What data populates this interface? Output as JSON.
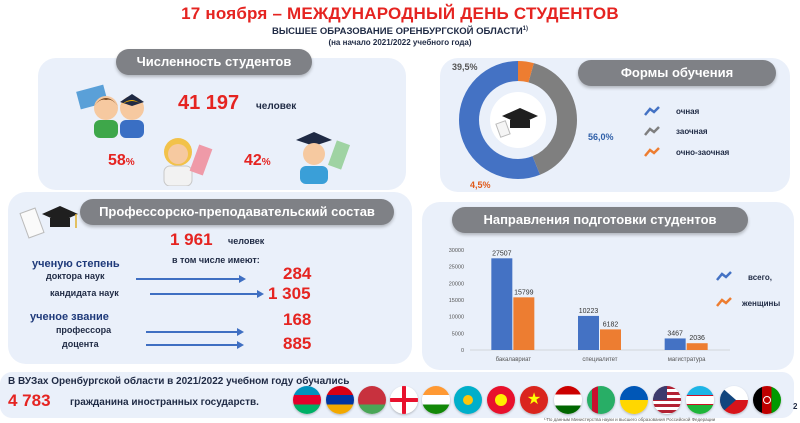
{
  "header": {
    "title": "17 ноября – МЕЖДУНАРОДНЫЙ ДЕНЬ СТУДЕНТОВ",
    "subtitle": "ВЫСШЕЕ ОБРАЗОВАНИЕ ОРЕНБУРГСКОЙ ОБЛАСТИ",
    "subtitle_sup": "1)",
    "note": "(на начало 2021/2022 учебного года)"
  },
  "students": {
    "title": "Численность студентов",
    "count": "41 197",
    "unit": "человек",
    "female_pct": "58",
    "male_pct": "42",
    "pct_sign": "%"
  },
  "forms": {
    "title": "Формы обучения",
    "label_top": "39,5%",
    "label_right": "56,0%",
    "label_bottom": "4,5%",
    "share_values": [
      56.0,
      39.5,
      4.5
    ],
    "legend": [
      {
        "label": "очная",
        "color": "#4472c4"
      },
      {
        "label": "заочная",
        "color": "#7f7f7f"
      },
      {
        "label": "очно-заочная",
        "color": "#ed7d31"
      }
    ]
  },
  "staff": {
    "title": "Профессорско-преподавательский состав",
    "count": "1 961",
    "unit": "человек",
    "including": "в том числе имеют:",
    "degree_heading": "ученую степень",
    "doctors_label": "доктора наук",
    "doctors_value": "284",
    "candidates_label": "кандидата наук",
    "candidates_value": "1 305",
    "rank_heading": "ученое звание",
    "professors_label": "профессора",
    "professors_value": "168",
    "docents_label": "доцента",
    "docents_value": "885"
  },
  "directions": {
    "title": "Направления подготовки студентов"
  },
  "chart_data": {
    "type": "bar",
    "categories": [
      "бакалавриат",
      "специалитет",
      "магистратура"
    ],
    "series": [
      {
        "name": "всего,",
        "values": [
          27507,
          10223,
          3467
        ],
        "color": "#4472c4"
      },
      {
        "name": "женщины",
        "values": [
          15799,
          6182,
          2036
        ],
        "color": "#ed7d31"
      }
    ],
    "ylim": [
      0,
      30000
    ],
    "yticks": [
      "30000",
      "25000",
      "20000",
      "15000",
      "10000",
      "5000",
      "0"
    ],
    "value_labels": [
      [
        "27507",
        "15799"
      ],
      [
        "10223",
        "6182"
      ],
      [
        "3467",
        "2036"
      ]
    ],
    "legend_position": "right"
  },
  "footer": {
    "line1": "В ВУЗах Оренбургской области в 2021/2022 учебном году обучались",
    "count": "4 783",
    "line2": "гражданина иностранных государств.",
    "source": "¹⁾По данным Министерства науки и высшего образования Российской Федерации",
    "page_number": "2"
  },
  "flags": [
    "azerbaijan-flag",
    "armenia-flag",
    "belarus-flag",
    "georgia-flag",
    "india-flag",
    "kazakhstan-flag",
    "kyrgyzstan-flag",
    "vietnam-flag",
    "tajikistan-flag",
    "turkmenistan-flag",
    "ukraine-flag",
    "usa-flag",
    "uzbekistan-flag",
    "czechia-flag",
    "afghanistan-flag"
  ]
}
